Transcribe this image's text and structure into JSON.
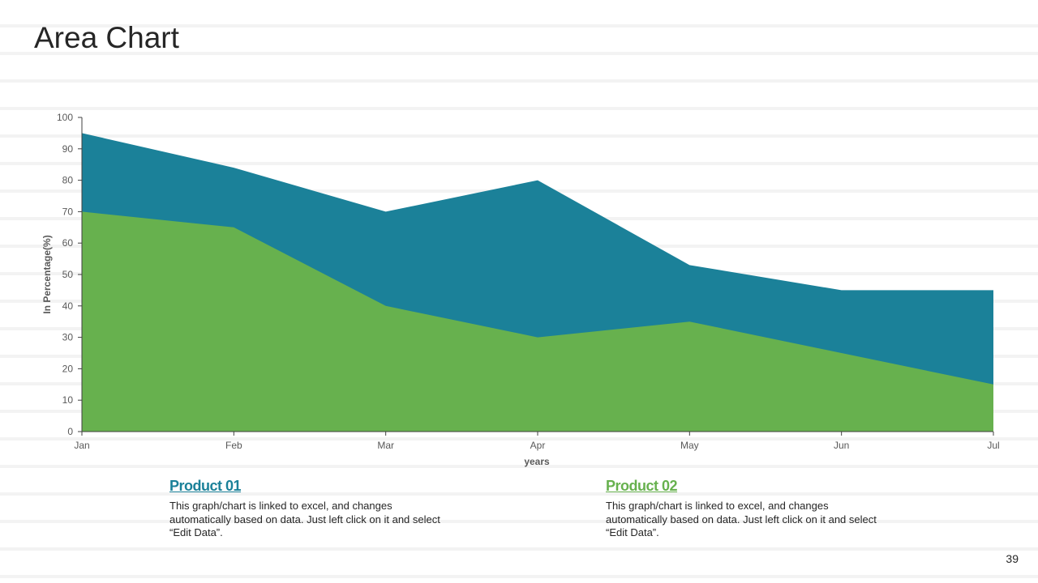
{
  "page": {
    "title": "Area Chart",
    "number": "39"
  },
  "chart_data": {
    "type": "area",
    "stacked": true,
    "categories": [
      "Jan",
      "Feb",
      "Mar",
      "Apr",
      "May",
      "Jun",
      "Jul"
    ],
    "series": [
      {
        "name": "Product 01",
        "values": [
          25,
          19,
          30,
          50,
          18,
          20,
          30
        ],
        "color": "#1b8199"
      },
      {
        "name": "Product 02",
        "values": [
          70,
          65,
          40,
          30,
          35,
          25,
          15
        ],
        "color": "#67b14e"
      }
    ],
    "xlabel": "years",
    "ylabel": "In Percentage(%)",
    "ylim": [
      0,
      100
    ],
    "yticks": [
      0,
      10,
      20,
      30,
      40,
      50,
      60,
      70,
      80,
      90,
      100
    ],
    "grid": false
  },
  "legend": {
    "items": [
      {
        "title": "Product 01",
        "color": "#1b8199",
        "description": "This graph/chart is linked to excel, and changes automatically based on data. Just left click on it and select “Edit Data”."
      },
      {
        "title": "Product 02",
        "color": "#67b14e",
        "description": "This graph/chart is linked to excel, and changes automatically based on data. Just left click on it and select “Edit Data”."
      }
    ]
  }
}
